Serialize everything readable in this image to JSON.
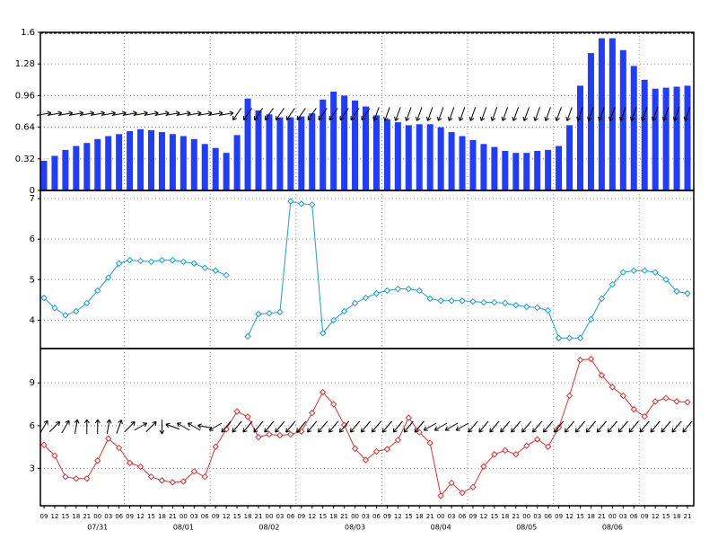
{
  "chart_data": [
    {
      "type": "bar",
      "color": "#1f3cff",
      "ylim": [
        0,
        1.6
      ],
      "yticks": [
        0,
        0.32,
        0.64,
        0.96,
        1.28,
        1.6
      ],
      "grid": true,
      "values": [
        0.3,
        0.35,
        0.41,
        0.45,
        0.48,
        0.52,
        0.55,
        0.57,
        0.6,
        0.62,
        0.61,
        0.59,
        0.57,
        0.55,
        0.52,
        0.47,
        0.43,
        0.38,
        0.56,
        0.93,
        0.81,
        0.77,
        0.74,
        0.74,
        0.75,
        0.78,
        0.92,
        1.0,
        0.96,
        0.91,
        0.85,
        0.76,
        0.72,
        0.69,
        0.66,
        0.67,
        0.67,
        0.64,
        0.59,
        0.55,
        0.51,
        0.47,
        0.44,
        0.4,
        0.38,
        0.38,
        0.4,
        0.41,
        0.45,
        0.66,
        1.06,
        1.39,
        1.54,
        1.54,
        1.42,
        1.26,
        1.12,
        1.03,
        1.04,
        1.05,
        1.06
      ],
      "arrows": [
        80,
        80,
        80,
        80,
        80,
        80,
        80,
        80,
        80,
        80,
        80,
        80,
        80,
        80,
        80,
        80,
        80,
        80,
        215,
        215,
        215,
        215,
        215,
        215,
        215,
        215,
        215,
        215,
        215,
        215,
        215,
        200,
        200,
        200,
        200,
        200,
        200,
        200,
        200,
        200,
        200,
        200,
        200,
        200,
        200,
        200,
        200,
        200,
        200,
        200,
        200,
        200,
        200,
        200,
        200,
        200,
        200,
        200,
        200,
        200,
        200
      ]
    },
    {
      "type": "line",
      "color": "#1aa0d8",
      "ylim": [
        3.3,
        7.2
      ],
      "yticks": [
        4,
        5,
        6,
        7
      ],
      "grid": true,
      "values": [
        4.55,
        4.3,
        4.12,
        4.22,
        4.42,
        4.73,
        5.05,
        5.4,
        5.48,
        5.46,
        5.44,
        5.48,
        5.48,
        5.44,
        5.4,
        5.29,
        5.22,
        5.11,
        null,
        3.6,
        4.15,
        4.17,
        4.2,
        6.93,
        6.87,
        6.85,
        3.68,
        4.0,
        4.22,
        4.42,
        4.55,
        4.66,
        4.73,
        4.77,
        4.77,
        4.73,
        4.53,
        4.48,
        4.48,
        4.48,
        4.46,
        4.44,
        4.44,
        4.42,
        4.37,
        4.33,
        4.31,
        4.24,
        3.56,
        3.56,
        3.56,
        4.02,
        4.53,
        4.88,
        5.18,
        5.22,
        5.22,
        5.18,
        5.0,
        4.71,
        4.66
      ]
    },
    {
      "type": "line",
      "color": "#e03030",
      "ylim": [
        0.4,
        11.4
      ],
      "yticks": [
        3,
        6,
        9
      ],
      "grid": true,
      "values": [
        4.66,
        3.9,
        2.43,
        2.3,
        2.3,
        3.55,
        5.1,
        4.45,
        3.4,
        3.13,
        2.43,
        2.17,
        2.04,
        2.1,
        2.8,
        2.43,
        4.53,
        5.75,
        7.0,
        6.63,
        5.2,
        5.4,
        5.33,
        5.4,
        5.6,
        6.9,
        8.35,
        7.5,
        6.05,
        4.4,
        3.6,
        4.2,
        4.36,
        5.0,
        6.56,
        5.55,
        4.8,
        1.1,
        2.0,
        1.3,
        1.7,
        3.15,
        4.0,
        4.27,
        4.0,
        4.6,
        5.05,
        4.53,
        5.87,
        8.1,
        10.6,
        10.67,
        9.53,
        8.7,
        8.1,
        7.15,
        6.65,
        7.7,
        7.93,
        7.7,
        7.65
      ],
      "arrows": [
        30,
        45,
        30,
        10,
        0,
        0,
        10,
        20,
        45,
        60,
        45,
        180,
        290,
        300,
        300,
        280,
        240,
        220,
        220,
        220,
        220,
        220,
        220,
        220,
        220,
        220,
        220,
        220,
        220,
        220,
        220,
        220,
        220,
        220,
        220,
        220,
        240,
        240,
        240,
        240,
        220,
        220,
        220,
        220,
        220,
        220,
        220,
        220,
        220,
        220,
        220,
        220,
        220,
        220,
        220,
        220,
        220,
        220,
        220,
        220,
        220
      ],
      "categories": [
        "09",
        "12",
        "15",
        "18",
        "21",
        "00",
        "03",
        "06",
        "09",
        "12",
        "15",
        "18",
        "21",
        "00",
        "03",
        "06",
        "09",
        "12",
        "15",
        "18",
        "21",
        "00",
        "03",
        "06",
        "09",
        "12",
        "15",
        "18",
        "21",
        "00",
        "03",
        "06",
        "09",
        "12",
        "15",
        "18",
        "21",
        "00",
        "03",
        "06",
        "09",
        "12",
        "15",
        "18",
        "21",
        "00",
        "03",
        "06",
        "09",
        "12",
        "15",
        "18",
        "21",
        "00",
        "03",
        "06",
        "09",
        "12",
        "15",
        "18",
        "21"
      ],
      "x_dates": [
        null,
        null,
        null,
        null,
        null,
        "07/31",
        null,
        null,
        null,
        null,
        null,
        null,
        null,
        "08/01",
        null,
        null,
        null,
        null,
        null,
        null,
        null,
        "08/02",
        null,
        null,
        null,
        null,
        null,
        null,
        null,
        "08/03",
        null,
        null,
        null,
        null,
        null,
        null,
        null,
        "08/04",
        null,
        null,
        null,
        null,
        null,
        null,
        null,
        "08/05",
        null,
        null,
        null,
        null,
        null,
        null,
        null,
        "08/06",
        null,
        null,
        null,
        null,
        null,
        null,
        null
      ]
    }
  ]
}
